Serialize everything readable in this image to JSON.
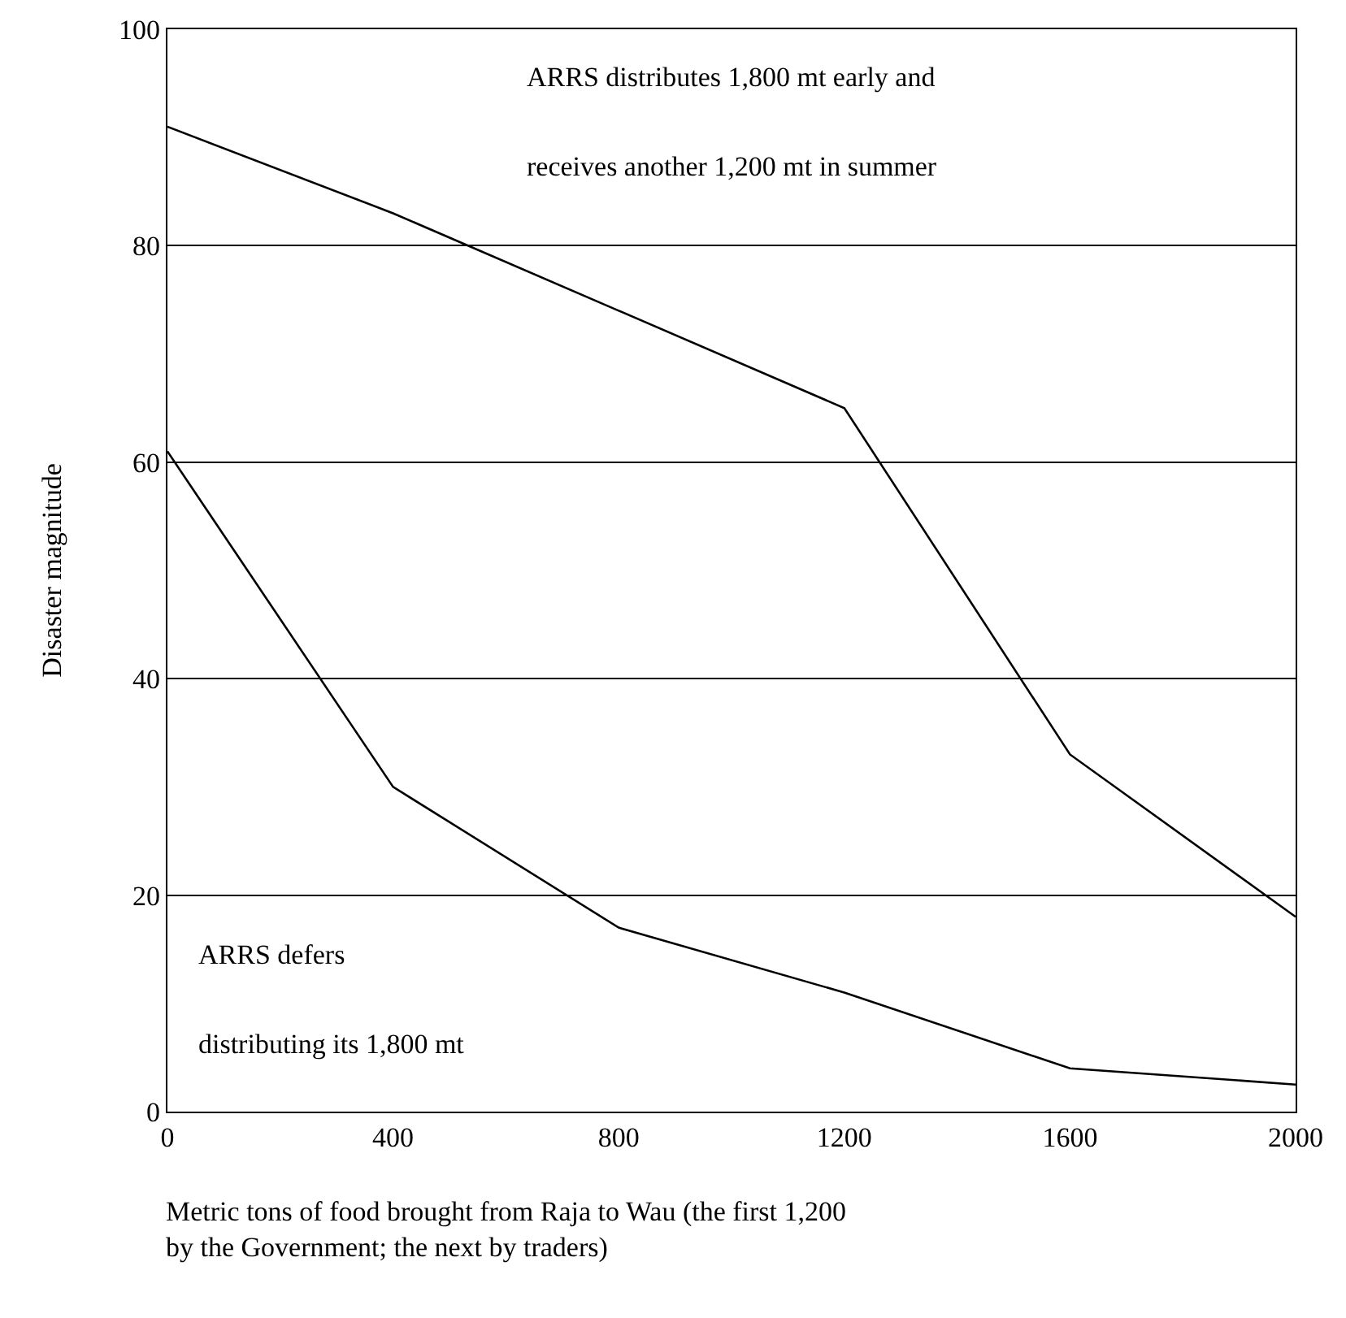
{
  "chart_data": {
    "type": "line",
    "xlabel": "Metric tons of food brought from Raja to Wau (the first 1,200 by the Government; the next by traders)",
    "ylabel": "Disaster magnitude",
    "x": [
      0,
      400,
      800,
      1200,
      1600,
      2000
    ],
    "series": [
      {
        "color": "#000000",
        "values": [
          91,
          83,
          74,
          65,
          33,
          18
        ]
      },
      {
        "color": "#000000",
        "values": [
          61,
          30,
          17,
          11,
          4,
          2.5
        ]
      }
    ],
    "annotations": [
      "ARRS distributes 1,800 mt early and receives another 1,200 mt in summer",
      "ARRS defers distributing its 1,800 mt"
    ],
    "xlim": [
      0,
      2000
    ],
    "xticks": [
      0,
      400,
      800,
      1200,
      1600,
      2000
    ],
    "ylim": [
      0,
      100
    ],
    "yticks": [
      0,
      20,
      40,
      60,
      80,
      100
    ],
    "grid": "y",
    "marker": "none",
    "line_style": "solid"
  }
}
